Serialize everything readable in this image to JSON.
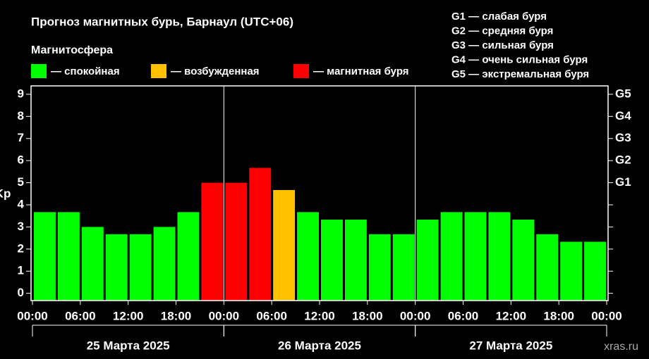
{
  "chart_data": {
    "type": "bar",
    "title": "Прогноз магнитных бурь, Барнаул (UTC+06)",
    "subtitle": "Магнитосфера",
    "ylabel": "Kp",
    "legend": [
      {
        "name": "— спокойная",
        "color": "#00ff00"
      },
      {
        "name": "— возбужденная",
        "color": "#ffc000"
      },
      {
        "name": "— магнитная буря",
        "color": "#ff0000"
      }
    ],
    "scale_notes": [
      "G1 — слабая буря",
      "G2 — средняя буря",
      "G3 — сильная буря",
      "G4 — очень сильная буря",
      "G5 — экстремальная буря"
    ],
    "x": [
      0,
      3,
      6,
      9,
      12,
      15,
      18,
      21,
      24,
      27,
      30,
      33,
      36,
      39,
      42,
      45,
      48,
      51,
      54,
      57,
      60,
      63,
      66,
      69
    ],
    "values": [
      3.67,
      3.67,
      3,
      2.67,
      2.67,
      3,
      3.67,
      5,
      5,
      5.67,
      4.67,
      3.67,
      3.33,
      3.33,
      2.67,
      2.67,
      3.33,
      3.67,
      3.67,
      3.67,
      3.33,
      2.67,
      2.33,
      2.33
    ],
    "colors": [
      "#00ff00",
      "#00ff00",
      "#00ff00",
      "#00ff00",
      "#00ff00",
      "#00ff00",
      "#00ff00",
      "#ff0000",
      "#ff0000",
      "#ff0000",
      "#ffc000",
      "#00ff00",
      "#00ff00",
      "#00ff00",
      "#00ff00",
      "#00ff00",
      "#00ff00",
      "#00ff00",
      "#00ff00",
      "#00ff00",
      "#00ff00",
      "#00ff00",
      "#00ff00",
      "#00ff00"
    ],
    "xlim": [
      0,
      72
    ],
    "xticks": [
      {
        "value": 0,
        "label": "00:00"
      },
      {
        "value": 6,
        "label": "06:00"
      },
      {
        "value": 12,
        "label": "12:00"
      },
      {
        "value": 18,
        "label": "18:00"
      },
      {
        "value": 24,
        "label": "00:00"
      },
      {
        "value": 30,
        "label": "06:00"
      },
      {
        "value": 36,
        "label": "12:00"
      },
      {
        "value": 42,
        "label": "18:00"
      },
      {
        "value": 48,
        "label": "00:00"
      },
      {
        "value": 54,
        "label": "06:00"
      },
      {
        "value": 60,
        "label": "12:00"
      },
      {
        "value": 66,
        "label": "18:00"
      },
      {
        "value": 72,
        "label": "00:00"
      }
    ],
    "groups": [
      {
        "label": "25 Марта 2025",
        "range": [
          0,
          24
        ]
      },
      {
        "label": "26 Марта 2025",
        "range": [
          24,
          48
        ]
      },
      {
        "label": "27 Марта 2025",
        "range": [
          48,
          72
        ]
      }
    ],
    "ylim": [
      -0.33,
      9.38
    ],
    "yticks": [
      0,
      1,
      2,
      3,
      4,
      5,
      6,
      7,
      8,
      9
    ],
    "y2lim": [
      -0.33,
      9.38
    ],
    "y2ticks": [
      {
        "value": 5,
        "label": "G1"
      },
      {
        "value": 6,
        "label": "G2"
      },
      {
        "value": 7,
        "label": "G3"
      },
      {
        "value": 8,
        "label": "G4"
      },
      {
        "value": 9,
        "label": "G5"
      }
    ],
    "watermark": "xras.ru"
  }
}
